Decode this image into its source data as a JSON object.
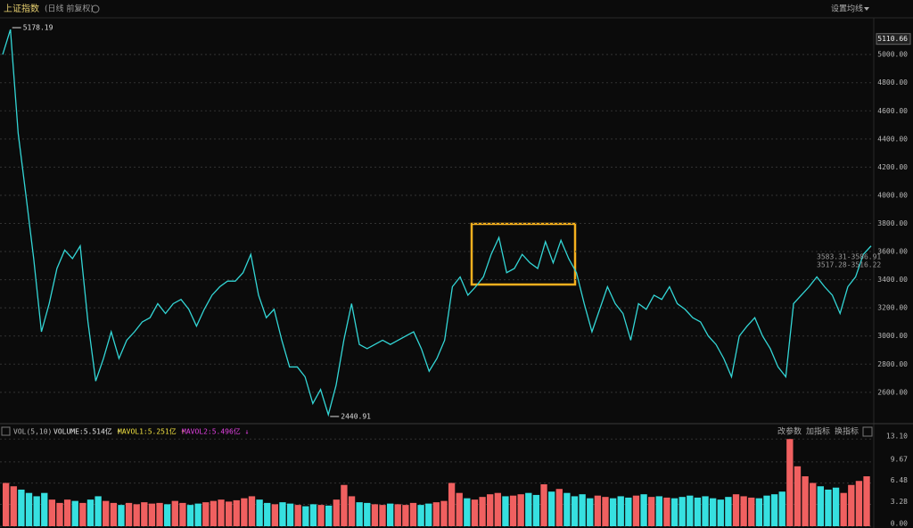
{
  "header": {
    "title": "上证指数",
    "subtitle": "(日线 前复权)",
    "settings": "设置均线"
  },
  "chart_data": [
    {
      "type": "line",
      "color": "#33d6d6",
      "values": [
        5000,
        5178.19,
        4440,
        4000,
        3550,
        3030,
        3230,
        3480,
        3610,
        3550,
        3640,
        3100,
        2680,
        2840,
        3030,
        2840,
        2970,
        3030,
        3100,
        3130,
        3230,
        3160,
        3230,
        3260,
        3190,
        3070,
        3190,
        3290,
        3350,
        3390,
        3390,
        3450,
        3580,
        3290,
        3130,
        3190,
        2970,
        2780,
        2780,
        2710,
        2520,
        2620,
        2440.91,
        2650,
        2970,
        3230,
        2940,
        2910,
        2940,
        2970,
        2940,
        2970,
        3000,
        3030,
        2910,
        2750,
        2840,
        2970,
        3350,
        3420,
        3290,
        3350,
        3420,
        3580,
        3700,
        3450,
        3480,
        3580,
        3520,
        3480,
        3670,
        3520,
        3680,
        3550,
        3450,
        3230,
        3030,
        3190,
        3350,
        3230,
        3160,
        2970,
        3230,
        3190,
        3290,
        3260,
        3350,
        3230,
        3190,
        3130,
        3100,
        3000,
        2940,
        2840,
        2710,
        3000,
        3070,
        3130,
        3000,
        2910,
        2780,
        2710,
        3230,
        3290,
        3350,
        3420,
        3350,
        3290,
        3160,
        3350,
        3420,
        3580,
        3640
      ],
      "ylim": [
        2390,
        5210
      ],
      "yticks": [
        {
          "value": 2600,
          "label": "2600.00"
        },
        {
          "value": 2800,
          "label": "2800.00"
        },
        {
          "value": 3000,
          "label": "3000.00"
        },
        {
          "value": 3200,
          "label": "3200.00"
        },
        {
          "value": 3400,
          "label": "3400.00"
        },
        {
          "value": 3600,
          "label": "3600.00"
        },
        {
          "value": 3800,
          "label": "3800.00"
        },
        {
          "value": 4000,
          "label": "4000.00"
        },
        {
          "value": 4200,
          "label": "4200.00"
        },
        {
          "value": 4400,
          "label": "4400.00"
        },
        {
          "value": 4600,
          "label": "4600.00"
        },
        {
          "value": 4800,
          "label": "4800.00"
        },
        {
          "value": 5000,
          "label": "5000.00"
        }
      ],
      "grid": true,
      "axis_marker": 5110.66,
      "max_label": 5178.19,
      "min_label": 2440.91,
      "range_labels": [
        "3583.31-3586.91",
        "3517.28-3516.22"
      ]
    },
    {
      "type": "bar",
      "title": "VOL(5,10)",
      "legend": [
        "VOLUME:5.514亿 ↑",
        "MAVOL1:5.251亿 ↑",
        "MAVOL2:5.496亿 ↓"
      ],
      "legend_colors": [
        "#e8e8e8",
        "#f0e040",
        "#e040e0"
      ],
      "buttons": [
        "改参数",
        "加指标",
        "换指标"
      ],
      "up_color": "#f06060",
      "down_color": "#36e0e0",
      "values": [
        6.5,
        6,
        5.5,
        5,
        4.5,
        5,
        4,
        3.5,
        4,
        3.8,
        3.5,
        4,
        4.5,
        3.8,
        3.5,
        3.2,
        3.5,
        3.3,
        3.6,
        3.4,
        3.5,
        3.3,
        3.8,
        3.5,
        3.2,
        3.4,
        3.6,
        3.8,
        4,
        3.7,
        3.9,
        4.2,
        4.5,
        4,
        3.5,
        3.3,
        3.6,
        3.4,
        3.2,
        3,
        3.3,
        3.2,
        3.1,
        4,
        6.2,
        4.5,
        3.6,
        3.5,
        3.3,
        3.2,
        3.4,
        3.3,
        3.2,
        3.5,
        3.2,
        3.4,
        3.6,
        3.8,
        6.5,
        5,
        4.2,
        4,
        4.4,
        4.8,
        5,
        4.5,
        4.6,
        4.8,
        5,
        4.7,
        6.3,
        5.2,
        5.6,
        5,
        4.5,
        4.8,
        4.2,
        4.6,
        4.4,
        4.2,
        4.5,
        4.3,
        4.6,
        4.8,
        4.4,
        4.5,
        4.3,
        4.2,
        4.4,
        4.6,
        4.3,
        4.5,
        4.2,
        4,
        4.4,
        4.8,
        4.5,
        4.3,
        4.2,
        4.6,
        4.8,
        5.2,
        13.1,
        9,
        7.5,
        6.5,
        6,
        5.5,
        5.8,
        5,
        6.2,
        6.8,
        7.5
      ],
      "ylim": [
        0,
        13.4
      ],
      "yticks": [
        {
          "value": 0,
          "label": "0.00"
        },
        {
          "value": 3.28,
          "label": "3.28"
        },
        {
          "value": 6.48,
          "label": "6.48"
        },
        {
          "value": 9.67,
          "label": "9.67"
        },
        {
          "value": 13.1,
          "label": "13.10"
        }
      ]
    }
  ]
}
